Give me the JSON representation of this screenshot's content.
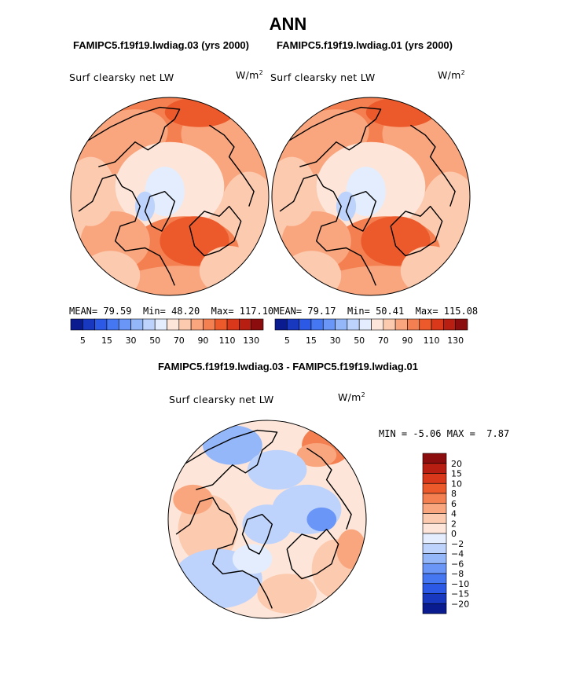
{
  "page": {
    "title": "ANN",
    "diff_title": "FAMIPC5.f19f19.lwdiag.03 - FAMIPC5.f19f19.lwdiag.01"
  },
  "colors": {
    "land_outline": "#000000",
    "background": "#ffffff"
  },
  "chart_data": [
    {
      "type": "heatmap",
      "projection": "north-polar-stereographic",
      "case_title": "FAMIPC5.f19f19.lwdiag.03 (yrs 2000)",
      "title": "Surf clearsky net LW",
      "units_base": "W/m",
      "units_exp": "2",
      "mean_label": "MEAN=",
      "mean": "79.59",
      "min_label": "Min=",
      "min": "48.20",
      "max_label": "Max=",
      "max": "117.10",
      "colorbar_levels": [
        5,
        10,
        15,
        20,
        30,
        40,
        50,
        60,
        70,
        80,
        90,
        100,
        110,
        120,
        130
      ],
      "colorbar_ticks": [
        "5",
        "15",
        "30",
        "50",
        "70",
        "90",
        "110",
        "130"
      ],
      "colorbar_colors": [
        "#0a1b8f",
        "#1838c0",
        "#2c5ae6",
        "#4677f2",
        "#6a96f7",
        "#94b7f9",
        "#bed3fb",
        "#e3edfd",
        "#fde6d9",
        "#fccaaf",
        "#f9a67f",
        "#f48052",
        "#ec5a2c",
        "#d9381a",
        "#b81f12",
        "#8c0d0d"
      ]
    },
    {
      "type": "heatmap",
      "projection": "north-polar-stereographic",
      "case_title": "FAMIPC5.f19f19.lwdiag.01 (yrs 2000)",
      "title": "Surf clearsky net LW",
      "units_base": "W/m",
      "units_exp": "2",
      "mean_label": "MEAN=",
      "mean": "79.17",
      "min_label": "Min=",
      "min": "50.41",
      "max_label": "Max=",
      "max": "115.08",
      "colorbar_levels": [
        5,
        10,
        15,
        20,
        30,
        40,
        50,
        60,
        70,
        80,
        90,
        100,
        110,
        120,
        130
      ],
      "colorbar_ticks": [
        "5",
        "15",
        "30",
        "50",
        "70",
        "90",
        "110",
        "130"
      ],
      "colorbar_colors": [
        "#0a1b8f",
        "#1838c0",
        "#2c5ae6",
        "#4677f2",
        "#6a96f7",
        "#94b7f9",
        "#bed3fb",
        "#e3edfd",
        "#fde6d9",
        "#fccaaf",
        "#f9a67f",
        "#f48052",
        "#ec5a2c",
        "#d9381a",
        "#b81f12",
        "#8c0d0d"
      ]
    },
    {
      "type": "heatmap",
      "projection": "north-polar-stereographic",
      "title": "Surf clearsky net LW",
      "units_base": "W/m",
      "units_exp": "2",
      "min_label": "MIN =",
      "min": "-5.06",
      "max_label": "MAX =",
      "max": "7.87",
      "colorbar_levels": [
        20,
        15,
        10,
        8,
        6,
        4,
        2,
        0,
        -2,
        -4,
        -6,
        -8,
        -10,
        -15,
        -20
      ],
      "colorbar_ticks": [
        "20",
        "15",
        "10",
        "8",
        "6",
        "4",
        "2",
        "0",
        "−2",
        "−4",
        "−6",
        "−8",
        "−10",
        "−15",
        "−20"
      ],
      "colorbar_colors": [
        "#8c0d0d",
        "#b81f12",
        "#d9381a",
        "#ec5a2c",
        "#f48052",
        "#f9a67f",
        "#fccaaf",
        "#fde6d9",
        "#e3edfd",
        "#bed3fb",
        "#94b7f9",
        "#6a96f7",
        "#4677f2",
        "#2c5ae6",
        "#1838c0",
        "#0a1b8f"
      ]
    }
  ]
}
